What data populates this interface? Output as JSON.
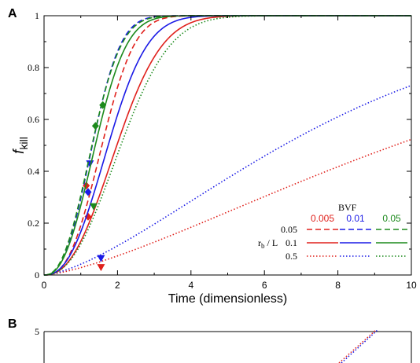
{
  "panels": {
    "a_label": "A",
    "b_label": "B"
  },
  "chart_data": [
    {
      "type": "line",
      "panel": "A",
      "xlabel": "Time (dimensionless)",
      "ylabel_main": "f",
      "ylabel_sub": "kill",
      "xlim": [
        0,
        10
      ],
      "ylim": [
        0,
        1
      ],
      "x_ticks": [
        "0",
        "2",
        "4",
        "6",
        "8",
        "10"
      ],
      "y_ticks": [
        "0",
        "0.2",
        "0.4",
        "0.6",
        "0.8",
        "1"
      ],
      "legend": {
        "placement": "bottom-right",
        "title": "BVF",
        "rows_title_main": "r",
        "rows_title_sub": "b",
        "rows_title_tail": " / L",
        "bvf_values": [
          "0.005",
          "0.01",
          "0.05"
        ],
        "rb_values": [
          "0.05",
          "0.1",
          "0.5"
        ]
      },
      "colors": {
        "0.005": "#e0201b",
        "0.01": "#1a1ae6",
        "0.05": "#1c8a1c"
      },
      "series": [
        {
          "bvf": "0.005",
          "rb": "0.05",
          "dash": "dashed",
          "k": 0.212,
          "n": 2.6,
          "marker": {
            "shape": "diamond",
            "x": 1.15,
            "y": 0.345
          }
        },
        {
          "bvf": "0.005",
          "rb": "0.1",
          "dash": "solid",
          "k": 0.139,
          "n": 2.35,
          "marker": {
            "shape": "diamond",
            "x": 1.2,
            "y": 0.225
          }
        },
        {
          "bvf": "0.005",
          "rb": "0.5",
          "dash": "dotted",
          "k": 0.0288,
          "n": 1.41,
          "marker": {
            "shape": "triangle-down",
            "x": 1.55,
            "y": 0.03
          }
        },
        {
          "bvf": "0.01",
          "rb": "0.05",
          "dash": "dashed",
          "k": 0.35,
          "n": 2.5,
          "marker": {
            "shape": "triangle-down",
            "x": 1.25,
            "y": 0.43
          }
        },
        {
          "bvf": "0.01",
          "rb": "0.1",
          "dash": "solid",
          "k": 0.182,
          "n": 2.4,
          "marker": {
            "shape": "diamond",
            "x": 1.2,
            "y": 0.32
          }
        },
        {
          "bvf": "0.01",
          "rb": "0.5",
          "dash": "dotted",
          "k": 0.0425,
          "n": 1.49,
          "marker": {
            "shape": "triangle-down",
            "x": 1.55,
            "y": 0.065
          }
        },
        {
          "bvf": "0.05",
          "rb": "0.05",
          "dash": "dashed",
          "k": 0.366,
          "n": 2.4,
          "marker": {
            "shape": "diamond",
            "x": 1.6,
            "y": 0.655
          }
        },
        {
          "bvf": "0.05",
          "rb": "0.1",
          "dash": "solid",
          "k": 0.312,
          "n": 2.4,
          "marker": {
            "shape": "diamond",
            "x": 1.4,
            "y": 0.575
          }
        },
        {
          "bvf": "0.05",
          "rb": "0.5",
          "dash": "dotted",
          "k": 0.127,
          "n": 2.3,
          "marker": {
            "shape": "triangle-down",
            "x": 1.35,
            "y": 0.265
          }
        }
      ]
    },
    {
      "type": "line",
      "panel": "B",
      "y_ticks": [
        "5"
      ],
      "partial": true
    }
  ]
}
